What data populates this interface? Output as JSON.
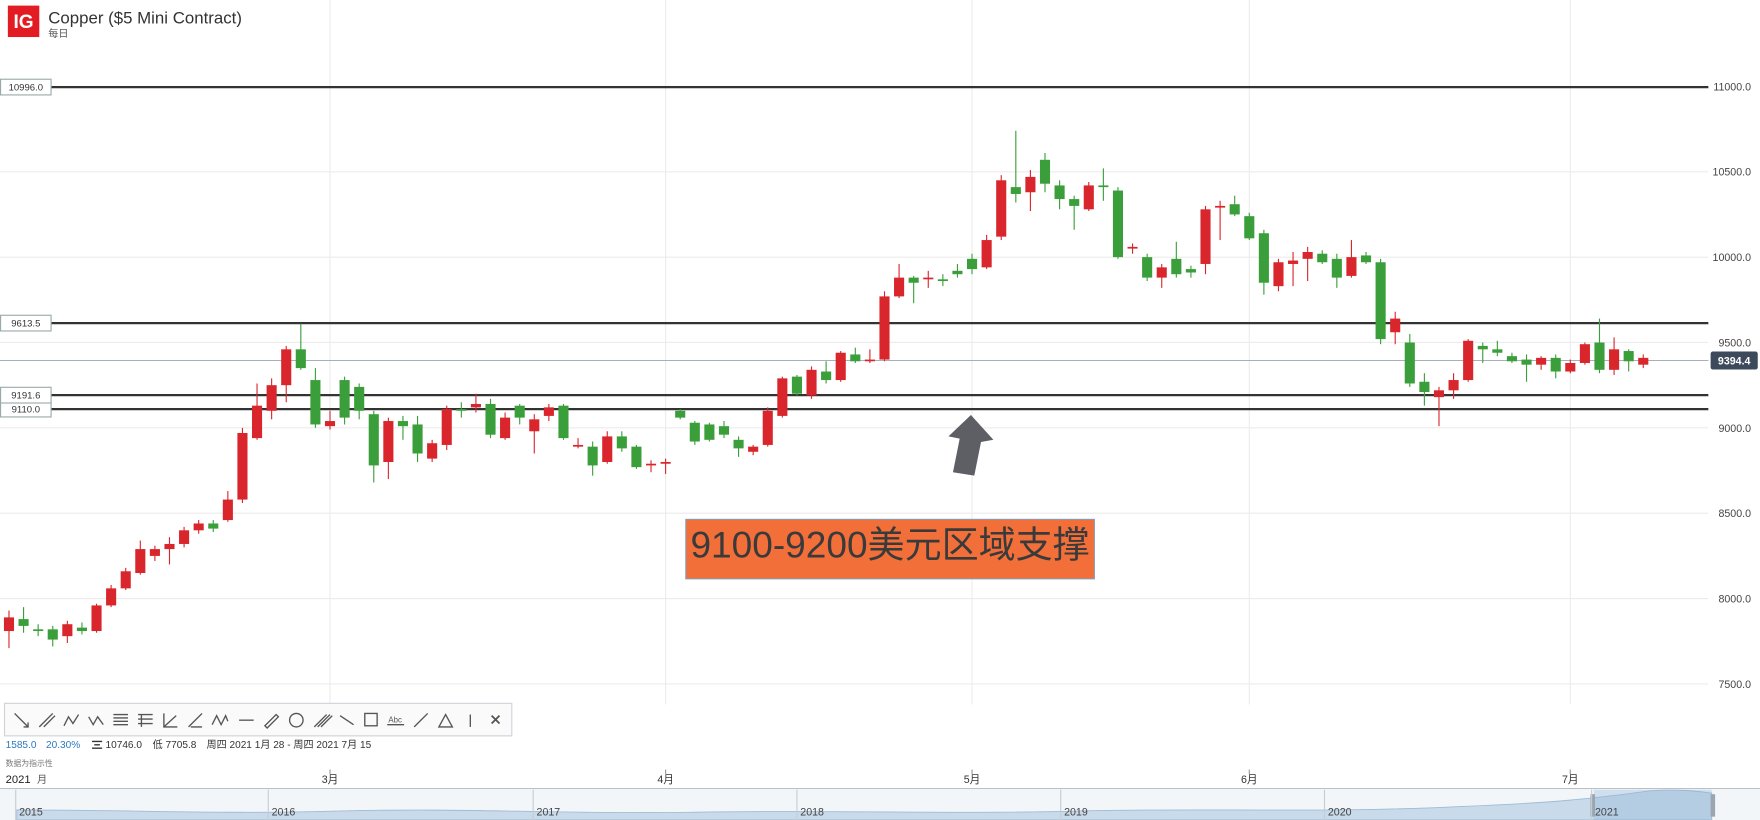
{
  "chart_data": {
    "type": "candlestick",
    "title": "Copper ($5 Mini Contract)",
    "subtitle": "每日",
    "logo": "IG",
    "up_color": "#d9262c",
    "down_color": "#3a9f3a",
    "grid": true,
    "ylim": [
      7380,
      11506
    ],
    "yticks": [
      {
        "value": 7500,
        "label": "7500.0"
      },
      {
        "value": 8000,
        "label": "8000.0"
      },
      {
        "value": 8500,
        "label": "8500.0"
      },
      {
        "value": 9000,
        "label": "9000.0"
      },
      {
        "value": 9500,
        "label": "9500.0"
      },
      {
        "value": 10000,
        "label": "10000.0"
      },
      {
        "value": 10500,
        "label": "10500.0"
      },
      {
        "value": 11000,
        "label": "11000.0"
      }
    ],
    "xticks": [
      {
        "value": 22,
        "label": "3月"
      },
      {
        "value": 45,
        "label": "4月"
      },
      {
        "value": 66,
        "label": "5月"
      },
      {
        "value": 85,
        "label": "6月"
      },
      {
        "value": 107,
        "label": "7月"
      }
    ],
    "x_year": "2021",
    "x_unit": "月",
    "levels": [
      {
        "value": 10996,
        "label": "10996.0"
      },
      {
        "value": 9613.5,
        "label": "9613.5"
      },
      {
        "value": 9110,
        "label": "9110.0"
      },
      {
        "value": 9191.6,
        "label": "9191.6"
      }
    ],
    "last_price": {
      "value": 9394.4,
      "label": "9394.4"
    },
    "annotation": "9100-9200美元区域支撑",
    "open": [
      7810,
      7880,
      7820,
      7820,
      7780,
      7830,
      7810,
      7960,
      8060,
      8150,
      8250,
      8290,
      8320,
      8400,
      8440,
      8460,
      8580,
      8940,
      9100,
      9250,
      9460,
      9280,
      9010,
      9280,
      9240,
      9080,
      8800,
      9040,
      9020,
      8820,
      8900,
      9110,
      9120,
      9140,
      8940,
      9130,
      8980,
      9070,
      9130,
      8890,
      8890,
      8800,
      8950,
      8890,
      8780,
      8790,
      9100,
      9030,
      9020,
      9010,
      8930,
      8860,
      8900,
      9070,
      9300,
      9190,
      9330,
      9280,
      9430,
      9390,
      9400,
      9770,
      9880,
      9870,
      9870,
      9920,
      9990,
      9940,
      10120,
      10410,
      10380,
      10570,
      10420,
      10340,
      10280,
      10420,
      10390,
      10050,
      10000,
      9880,
      9990,
      9930,
      9960,
      10290,
      10310,
      10240,
      10140,
      9830,
      9960,
      9990,
      10020,
      9990,
      9890,
      10010,
      9970,
      9560,
      9500,
      9270,
      9180,
      9220,
      9280,
      9480,
      9460,
      9420,
      9400,
      9370,
      9410,
      9330,
      9380,
      9500,
      9340,
      9450,
      9370
    ],
    "high": [
      7930,
      7950,
      7850,
      7840,
      7870,
      7860,
      7970,
      8080,
      8180,
      8340,
      8310,
      8360,
      8420,
      8460,
      8460,
      8630,
      9000,
      9260,
      9290,
      9480,
      9610,
      9350,
      9100,
      9300,
      9260,
      9100,
      9060,
      9070,
      9070,
      8930,
      9130,
      9150,
      9200,
      9170,
      9090,
      9140,
      9080,
      9140,
      9140,
      8940,
      8920,
      8980,
      8980,
      8900,
      8810,
      8820,
      9110,
      9040,
      9030,
      9040,
      8950,
      8900,
      9120,
      9300,
      9310,
      9360,
      9390,
      9450,
      9470,
      9460,
      9800,
      9960,
      9890,
      9920,
      9900,
      9960,
      10020,
      10130,
      10480,
      10740,
      10510,
      10610,
      10450,
      10360,
      10440,
      10520,
      10410,
      10080,
      10020,
      9960,
      10090,
      9950,
      10300,
      10330,
      10360,
      10260,
      10160,
      9990,
      10030,
      10060,
      10040,
      10020,
      10100,
      10030,
      9990,
      9680,
      9550,
      9320,
      9240,
      9320,
      9520,
      9500,
      9510,
      9440,
      9430,
      9420,
      9430,
      9400,
      9500,
      9640,
      9530,
      9460,
      9430
    ],
    "low": [
      7710,
      7800,
      7780,
      7720,
      7740,
      7790,
      7800,
      7950,
      8050,
      8140,
      8220,
      8200,
      8300,
      8380,
      8390,
      8450,
      8560,
      8930,
      9050,
      9150,
      9340,
      9000,
      8990,
      9020,
      9050,
      8680,
      8700,
      8930,
      8800,
      8800,
      8870,
      9060,
      9090,
      8940,
      8930,
      9020,
      8850,
      9040,
      8930,
      8880,
      8720,
      8790,
      8860,
      8760,
      8740,
      8730,
      9050,
      8900,
      8920,
      8940,
      8830,
      8840,
      8890,
      9060,
      9190,
      9170,
      9260,
      9270,
      9380,
      9380,
      9390,
      9760,
      9730,
      9820,
      9830,
      9880,
      9900,
      9930,
      10100,
      10320,
      10270,
      10380,
      10280,
      10160,
      10270,
      10330,
      9990,
      10020,
      9860,
      9820,
      9880,
      9880,
      9900,
      10100,
      10240,
      10100,
      9780,
      9800,
      9830,
      9860,
      9960,
      9820,
      9880,
      9960,
      9490,
      9490,
      9240,
      9130,
      9010,
      9170,
      9270,
      9380,
      9420,
      9380,
      9270,
      9340,
      9290,
      9320,
      9370,
      9320,
      9310,
      9330,
      9350
    ],
    "close": [
      7890,
      7840,
      7810,
      7760,
      7850,
      7810,
      7960,
      8060,
      8160,
      8290,
      8290,
      8320,
      8400,
      8440,
      8410,
      8580,
      8970,
      9130,
      9250,
      9460,
      9350,
      9020,
      9040,
      9060,
      9100,
      8780,
      9040,
      9010,
      8850,
      8910,
      9110,
      9100,
      9140,
      8960,
      9060,
      9060,
      9050,
      9120,
      8940,
      8900,
      8780,
      8950,
      8880,
      8770,
      8790,
      8800,
      9060,
      8920,
      8930,
      8960,
      8880,
      8890,
      9100,
      9290,
      9200,
      9340,
      9280,
      9440,
      9390,
      9400,
      9770,
      9880,
      9850,
      9880,
      9860,
      9900,
      9930,
      10100,
      10450,
      10370,
      10470,
      10430,
      10340,
      10300,
      10420,
      10410,
      10000,
      10060,
      9880,
      9940,
      9900,
      9910,
      10280,
      10300,
      10250,
      10110,
      9850,
      9970,
      9980,
      10030,
      9970,
      9880,
      10000,
      9970,
      9520,
      9640,
      9260,
      9210,
      9220,
      9280,
      9510,
      9460,
      9440,
      9390,
      9370,
      9410,
      9330,
      9380,
      9490,
      9340,
      9460,
      9390,
      9410
    ],
    "stats": {
      "change": "1585.0",
      "change_pct": "20.30%",
      "high": "10746.0",
      "low": "低 7705.8",
      "period": "周四 2021 1月 28 - 周四 2021 7月 15",
      "note": "数据为指示性"
    },
    "navigator_years": [
      "2015",
      "2016",
      "2017",
      "2018",
      "2019",
      "2020",
      "2021"
    ]
  }
}
